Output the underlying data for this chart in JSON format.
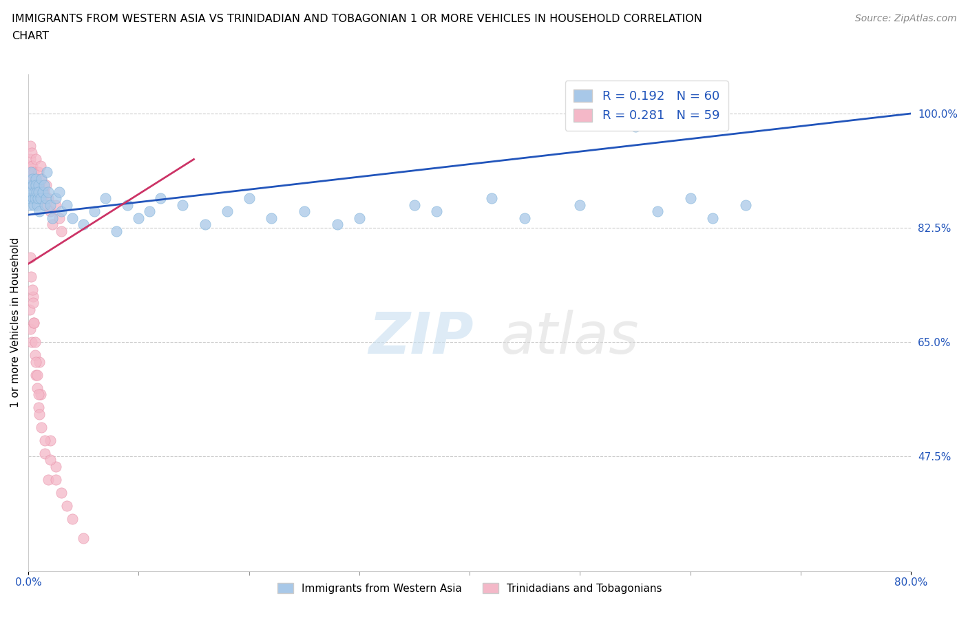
{
  "title_line1": "IMMIGRANTS FROM WESTERN ASIA VS TRINIDADIAN AND TOBAGONIAN 1 OR MORE VEHICLES IN HOUSEHOLD CORRELATION",
  "title_line2": "CHART",
  "source_text": "Source: ZipAtlas.com",
  "ylabel": "1 or more Vehicles in Household",
  "right_yticks": [
    47.5,
    65.0,
    82.5,
    100.0
  ],
  "blue_color": "#a8c8e8",
  "blue_edge_color": "#7ab0d8",
  "pink_color": "#f4b8c8",
  "pink_edge_color": "#e890a8",
  "blue_line_color": "#2255bb",
  "pink_line_color": "#cc3366",
  "legend_box_color_blue": "#a8c8e8",
  "legend_box_color_pink": "#f4b8c8",
  "legend_text_color": "#2255bb",
  "tick_color": "#2255bb",
  "watermark_zip_color": "#c8dff0",
  "watermark_atlas_color": "#d8d8d8",
  "xlim": [
    0.0,
    80.0
  ],
  "ylim_min": 30.0,
  "ylim_max": 106.0,
  "blue_line_x0": 0.0,
  "blue_line_y0": 84.5,
  "blue_line_x1": 80.0,
  "blue_line_y1": 100.0,
  "pink_line_x0": 0.0,
  "pink_line_y0": 77.0,
  "pink_line_x1": 15.0,
  "pink_line_y1": 93.0,
  "blue_scatter_x": [
    0.1,
    0.15,
    0.2,
    0.25,
    0.3,
    0.35,
    0.4,
    0.45,
    0.5,
    0.55,
    0.6,
    0.65,
    0.7,
    0.75,
    0.8,
    0.85,
    0.9,
    0.95,
    1.0,
    1.1,
    1.2,
    1.3,
    1.4,
    1.5,
    1.6,
    1.7,
    1.8,
    2.0,
    2.2,
    2.5,
    2.8,
    3.0,
    3.5,
    4.0,
    5.0,
    6.0,
    7.0,
    8.0,
    9.0,
    10.0,
    11.0,
    12.0,
    14.0,
    16.0,
    18.0,
    20.0,
    22.0,
    25.0,
    28.0,
    30.0,
    35.0,
    37.0,
    42.0,
    45.0,
    50.0,
    55.0,
    57.0,
    60.0,
    62.0,
    65.0
  ],
  "blue_scatter_y": [
    86,
    87,
    89,
    91,
    88,
    90,
    87,
    89,
    86,
    88,
    87,
    90,
    89,
    88,
    86,
    87,
    89,
    88,
    85,
    87,
    90,
    88,
    89,
    86,
    87,
    91,
    88,
    86,
    84,
    87,
    88,
    85,
    86,
    84,
    83,
    85,
    87,
    82,
    86,
    84,
    85,
    87,
    86,
    83,
    85,
    87,
    84,
    85,
    83,
    84,
    86,
    85,
    87,
    84,
    86,
    98,
    85,
    87,
    84,
    86
  ],
  "pink_scatter_x": [
    0.05,
    0.1,
    0.15,
    0.2,
    0.25,
    0.3,
    0.35,
    0.4,
    0.5,
    0.6,
    0.7,
    0.8,
    0.9,
    1.0,
    1.1,
    1.2,
    1.3,
    1.4,
    1.5,
    1.6,
    1.8,
    2.0,
    2.2,
    2.5,
    2.8,
    3.0,
    0.1,
    0.2,
    0.3,
    0.4,
    0.5,
    0.6,
    0.7,
    0.8,
    0.9,
    1.0,
    1.1,
    1.2,
    1.5,
    1.8,
    2.0,
    2.5,
    3.0,
    0.15,
    0.25,
    0.35,
    0.45,
    0.5,
    0.6,
    0.7,
    0.8,
    0.9,
    1.0,
    1.5,
    2.0,
    2.5,
    3.5,
    4.0,
    5.0
  ],
  "pink_scatter_y": [
    92,
    90,
    95,
    93,
    91,
    94,
    92,
    89,
    91,
    90,
    93,
    88,
    91,
    89,
    92,
    90,
    87,
    88,
    86,
    89,
    87,
    85,
    83,
    86,
    84,
    82,
    70,
    67,
    65,
    72,
    68,
    63,
    60,
    58,
    55,
    62,
    57,
    52,
    48,
    44,
    50,
    46,
    42,
    78,
    75,
    73,
    71,
    68,
    65,
    62,
    60,
    57,
    54,
    50,
    47,
    44,
    40,
    38,
    35
  ]
}
